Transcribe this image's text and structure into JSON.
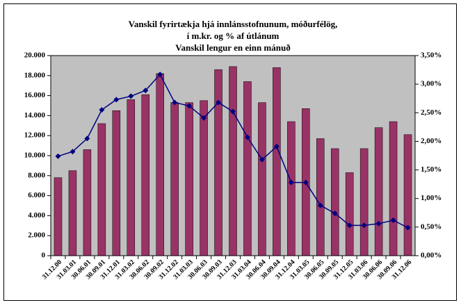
{
  "chart_data": {
    "type": "bar-line",
    "title_lines": [
      "Vanskil fyrirtækja hjá innlánsstofnunum, móðurfélög,",
      "í m.kr. og % af útlánum",
      "Vanskil lengur en einn mánuð"
    ],
    "categories": [
      "31.12.00",
      "31.03.01",
      "30.06.01",
      "30.09.01",
      "31.12.01",
      "31.03.02",
      "30.06.02",
      "30.09.02",
      "31.12.02",
      "31.03.03",
      "30.06.03",
      "30.09.03",
      "31.12.03",
      "31.03.04",
      "30.06.04",
      "30.09.04",
      "31.12.04",
      "31.03.05",
      "30.06.05",
      "30.09.05",
      "31.12.05",
      "31.03.06",
      "30.06.06",
      "30.09.06",
      "31.12.06"
    ],
    "series": [
      {
        "type": "bar",
        "color": "#993366",
        "values": [
          7800,
          8500,
          10600,
          13200,
          14500,
          15600,
          16100,
          18200,
          15300,
          15300,
          15500,
          18600,
          18900,
          17400,
          15300,
          18800,
          13400,
          14700,
          11700,
          10700,
          8300,
          10700,
          12800,
          13400,
          12100
        ]
      },
      {
        "type": "line",
        "axis": "y2",
        "color": "#000080",
        "values": [
          1.74,
          1.82,
          2.05,
          2.55,
          2.73,
          2.79,
          2.89,
          3.17,
          2.68,
          2.62,
          2.41,
          2.68,
          2.52,
          2.07,
          1.68,
          1.91,
          1.28,
          1.28,
          0.88,
          0.74,
          0.53,
          0.53,
          0.56,
          0.62,
          0.49
        ]
      }
    ],
    "ylim": [
      0,
      20000
    ],
    "yticks": [
      {
        "value": 0,
        "label": "0"
      },
      {
        "value": 2000,
        "label": "2.000"
      },
      {
        "value": 4000,
        "label": "4.000"
      },
      {
        "value": 6000,
        "label": "6.000"
      },
      {
        "value": 8000,
        "label": "8.000"
      },
      {
        "value": 10000,
        "label": "10.000"
      },
      {
        "value": 12000,
        "label": "12.000"
      },
      {
        "value": 14000,
        "label": "14.000"
      },
      {
        "value": 16000,
        "label": "16.000"
      },
      {
        "value": 18000,
        "label": "18.000"
      },
      {
        "value": 20000,
        "label": "20.000"
      }
    ],
    "y2lim": [
      0,
      3.5
    ],
    "y2ticks": [
      {
        "value": 0,
        "label": "0,00%"
      },
      {
        "value": 0.5,
        "label": "0,50%"
      },
      {
        "value": 1,
        "label": "1,00%"
      },
      {
        "value": 1.5,
        "label": "1,50%"
      },
      {
        "value": 2,
        "label": "2,00%"
      },
      {
        "value": 2.5,
        "label": "2,50%"
      },
      {
        "value": 3,
        "label": "3,00%"
      },
      {
        "value": 3.5,
        "label": "3,50%"
      }
    ],
    "plot_background": "#c0c0c0"
  }
}
